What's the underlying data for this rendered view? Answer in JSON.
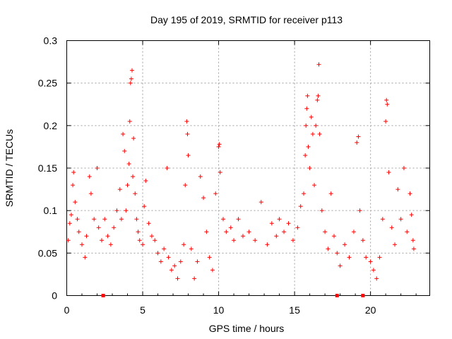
{
  "chart_data": {
    "type": "scatter",
    "title": "Day 195 of 2019, SRMTID for receiver p113",
    "xlabel": "GPS time / hours",
    "ylabel": "SRMTID / TECUs",
    "xlim": [
      0,
      23.9
    ],
    "ylim": [
      0,
      0.3
    ],
    "x_ticks": [
      0,
      5,
      10,
      15,
      20
    ],
    "y_ticks": [
      0,
      0.05,
      0.1,
      0.15,
      0.2,
      0.25,
      0.3
    ],
    "x_tick_labels": [
      "0",
      "5",
      "10",
      "15",
      "20"
    ],
    "y_tick_labels": [
      "0",
      "0.05",
      "0.1",
      "0.15",
      "0.2",
      "0.25",
      "0.3"
    ],
    "grid": true,
    "marker": "+",
    "marker_color": "#ff0000",
    "baseline_markers_x": [
      2.4,
      17.8,
      19.5
    ],
    "series": [
      {
        "name": "SRMTID",
        "points": [
          [
            0.1,
            0.065
          ],
          [
            0.2,
            0.085
          ],
          [
            0.3,
            0.095
          ],
          [
            0.4,
            0.13
          ],
          [
            0.45,
            0.145
          ],
          [
            0.55,
            0.11
          ],
          [
            0.7,
            0.09
          ],
          [
            0.8,
            0.075
          ],
          [
            1.0,
            0.06
          ],
          [
            1.2,
            0.045
          ],
          [
            1.3,
            0.07
          ],
          [
            1.5,
            0.14
          ],
          [
            1.6,
            0.12
          ],
          [
            1.8,
            0.09
          ],
          [
            2.0,
            0.15
          ],
          [
            2.1,
            0.08
          ],
          [
            2.3,
            0.065
          ],
          [
            2.5,
            0.09
          ],
          [
            2.7,
            0.07
          ],
          [
            2.9,
            0.06
          ],
          [
            3.1,
            0.08
          ],
          [
            3.3,
            0.1
          ],
          [
            3.5,
            0.125
          ],
          [
            3.6,
            0.09
          ],
          [
            3.7,
            0.19
          ],
          [
            3.8,
            0.17
          ],
          [
            3.9,
            0.1
          ],
          [
            4.0,
            0.13
          ],
          [
            4.1,
            0.155
          ],
          [
            4.15,
            0.205
          ],
          [
            4.2,
            0.25
          ],
          [
            4.25,
            0.255
          ],
          [
            4.3,
            0.265
          ],
          [
            4.35,
            0.14
          ],
          [
            4.4,
            0.185
          ],
          [
            4.5,
            0.12
          ],
          [
            4.6,
            0.09
          ],
          [
            4.7,
            0.075
          ],
          [
            4.8,
            0.065
          ],
          [
            5.0,
            0.06
          ],
          [
            5.1,
            0.105
          ],
          [
            5.2,
            0.135
          ],
          [
            5.4,
            0.085
          ],
          [
            5.6,
            0.07
          ],
          [
            5.8,
            0.065
          ],
          [
            6.0,
            0.05
          ],
          [
            6.2,
            0.04
          ],
          [
            6.4,
            0.055
          ],
          [
            6.6,
            0.15
          ],
          [
            6.7,
            0.045
          ],
          [
            6.9,
            0.03
          ],
          [
            7.1,
            0.035
          ],
          [
            7.3,
            0.02
          ],
          [
            7.5,
            0.04
          ],
          [
            7.7,
            0.06
          ],
          [
            7.8,
            0.13
          ],
          [
            7.9,
            0.205
          ],
          [
            7.95,
            0.19
          ],
          [
            8.0,
            0.165
          ],
          [
            8.2,
            0.055
          ],
          [
            8.4,
            0.02
          ],
          [
            8.6,
            0.04
          ],
          [
            8.8,
            0.14
          ],
          [
            9.0,
            0.115
          ],
          [
            9.2,
            0.075
          ],
          [
            9.4,
            0.045
          ],
          [
            9.6,
            0.03
          ],
          [
            9.8,
            0.12
          ],
          [
            10.0,
            0.175
          ],
          [
            10.05,
            0.178
          ],
          [
            10.1,
            0.145
          ],
          [
            10.3,
            0.09
          ],
          [
            10.5,
            0.075
          ],
          [
            10.8,
            0.08
          ],
          [
            11.0,
            0.065
          ],
          [
            11.3,
            0.09
          ],
          [
            11.6,
            0.07
          ],
          [
            12.0,
            0.075
          ],
          [
            12.4,
            0.065
          ],
          [
            12.8,
            0.11
          ],
          [
            13.2,
            0.06
          ],
          [
            13.5,
            0.085
          ],
          [
            13.8,
            0.07
          ],
          [
            14.0,
            0.09
          ],
          [
            14.3,
            0.075
          ],
          [
            14.6,
            0.085
          ],
          [
            14.9,
            0.065
          ],
          [
            15.2,
            0.08
          ],
          [
            15.4,
            0.105
          ],
          [
            15.6,
            0.12
          ],
          [
            15.7,
            0.165
          ],
          [
            15.75,
            0.2
          ],
          [
            15.8,
            0.22
          ],
          [
            15.85,
            0.235
          ],
          [
            15.9,
            0.175
          ],
          [
            16.0,
            0.15
          ],
          [
            16.1,
            0.21
          ],
          [
            16.2,
            0.19
          ],
          [
            16.3,
            0.13
          ],
          [
            16.4,
            0.2
          ],
          [
            16.5,
            0.23
          ],
          [
            16.55,
            0.235
          ],
          [
            16.6,
            0.272
          ],
          [
            16.65,
            0.19
          ],
          [
            16.8,
            0.1
          ],
          [
            17.0,
            0.075
          ],
          [
            17.2,
            0.055
          ],
          [
            17.4,
            0.12
          ],
          [
            17.6,
            0.07
          ],
          [
            17.8,
            0.05
          ],
          [
            18.0,
            0.035
          ],
          [
            18.3,
            0.06
          ],
          [
            18.6,
            0.045
          ],
          [
            18.9,
            0.075
          ],
          [
            19.1,
            0.18
          ],
          [
            19.2,
            0.187
          ],
          [
            19.3,
            0.1
          ],
          [
            19.5,
            0.065
          ],
          [
            19.7,
            0.045
          ],
          [
            20.0,
            0.04
          ],
          [
            20.2,
            0.03
          ],
          [
            20.4,
            0.02
          ],
          [
            20.6,
            0.045
          ],
          [
            20.8,
            0.09
          ],
          [
            21.0,
            0.205
          ],
          [
            21.05,
            0.23
          ],
          [
            21.1,
            0.225
          ],
          [
            21.2,
            0.145
          ],
          [
            21.4,
            0.08
          ],
          [
            21.6,
            0.06
          ],
          [
            21.8,
            0.125
          ],
          [
            22.0,
            0.09
          ],
          [
            22.2,
            0.15
          ],
          [
            22.4,
            0.075
          ],
          [
            22.6,
            0.12
          ],
          [
            22.7,
            0.095
          ],
          [
            22.8,
            0.065
          ],
          [
            22.85,
            0.055
          ]
        ]
      }
    ]
  }
}
